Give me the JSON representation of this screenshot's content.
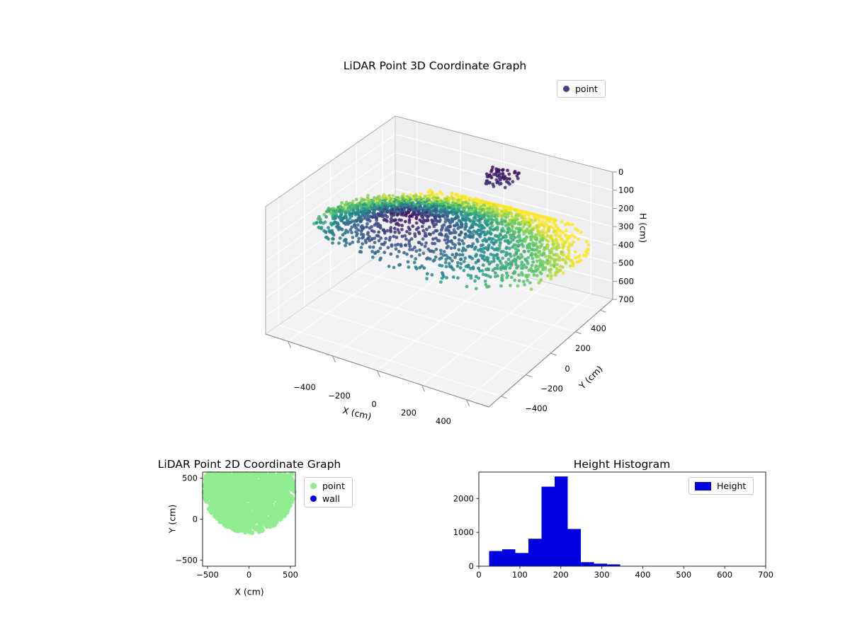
{
  "figure": {
    "background": "#ffffff"
  },
  "chart_data": [
    {
      "id": "lidar-3d",
      "type": "scatter3d",
      "title": "LiDAR Point 3D Coordinate Graph",
      "xlabel": "X (cm)",
      "ylabel": "Y (cm)",
      "zlabel": "H (cm)",
      "xlim": [
        -500,
        500
      ],
      "ylim": [
        -500,
        500
      ],
      "zlim": [
        0,
        700
      ],
      "z_axis_inverted": true,
      "xticks": [
        -400,
        -200,
        0,
        200,
        400
      ],
      "yticks": [
        -400,
        -200,
        0,
        200,
        400
      ],
      "zticks": [
        0,
        100,
        200,
        300,
        400,
        500,
        600,
        700
      ],
      "grid": true,
      "legend": [
        {
          "label": "point",
          "color": "#414487"
        }
      ],
      "colormap": "viridis",
      "color_by": "height",
      "color_range": [
        20,
        345
      ],
      "point_cloud": {
        "seed": 11,
        "center_x": 20,
        "center_y": 60,
        "radius": 470,
        "ring_step": 22,
        "arc_step": 16,
        "height_origin_x": -30,
        "height_origin_y": -220,
        "height_base": 30,
        "height_slope": 0.45,
        "height_noise": 16,
        "rim_points": 330,
        "rim_extra": 75,
        "clusters": [
          {
            "x": 100,
            "y": 300,
            "spread": 60,
            "h_min": 25,
            "h_max": 75,
            "n": 60
          }
        ]
      }
    },
    {
      "id": "lidar-2d",
      "type": "scatter",
      "title": "LiDAR Point 2D Coordinate Graph",
      "xlabel": "X (cm)",
      "ylabel": "Y (cm)",
      "xlim": [
        -560,
        560
      ],
      "ylim": [
        -575,
        575
      ],
      "xticks": [
        -500,
        0,
        500
      ],
      "yticks": [
        -500,
        0,
        500
      ],
      "legend": [
        {
          "label": "point",
          "color": "#90ee90"
        },
        {
          "label": "wall",
          "color": "#0000e0"
        }
      ],
      "point_color": "#90ee90",
      "blob": {
        "seed": 7,
        "center_x": 0,
        "center_y": 380,
        "radius": 550,
        "n": 2400,
        "clip_y_max": 560
      }
    },
    {
      "id": "height-histogram",
      "type": "bar",
      "title": "Height Histogram",
      "xlim": [
        0,
        700
      ],
      "ylim": [
        0,
        2780
      ],
      "xticks": [
        0,
        100,
        200,
        300,
        400,
        500,
        600,
        700
      ],
      "yticks": [
        0,
        1000,
        2000
      ],
      "legend": [
        {
          "label": "Height",
          "color": "#0000e0"
        }
      ],
      "bar_color": "#0000e0",
      "bars": [
        {
          "x0": 25,
          "x1": 57,
          "count": 450
        },
        {
          "x0": 57,
          "x1": 89,
          "count": 500
        },
        {
          "x0": 89,
          "x1": 121,
          "count": 390
        },
        {
          "x0": 121,
          "x1": 153,
          "count": 810
        },
        {
          "x0": 153,
          "x1": 185,
          "count": 2350
        },
        {
          "x0": 185,
          "x1": 217,
          "count": 2650
        },
        {
          "x0": 217,
          "x1": 249,
          "count": 1100
        },
        {
          "x0": 249,
          "x1": 281,
          "count": 120
        },
        {
          "x0": 281,
          "x1": 313,
          "count": 75
        },
        {
          "x0": 313,
          "x1": 345,
          "count": 55
        }
      ]
    }
  ]
}
